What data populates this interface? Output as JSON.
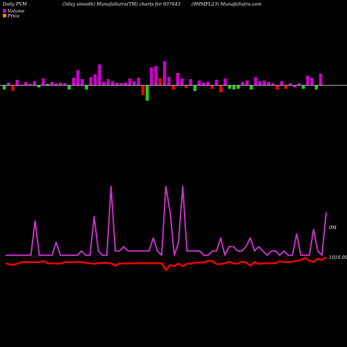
{
  "header": {
    "left": "Daily PVM",
    "center": "(5day smooth) MunafaSutra(TM) charts for 937643",
    "right": "(9MMFL23) MunafaSutra.com"
  },
  "legend": [
    {
      "label": "Volume",
      "color": "#cc00cc"
    },
    {
      "label": "Price",
      "color": "#ff8800"
    }
  ],
  "colors": {
    "background": "#000000",
    "volume_line": "#cc33cc",
    "price_line": "#ff0000",
    "bar_up": "#cc00cc",
    "bar_down": "#ff0000",
    "bar_green": "#22cc22",
    "baseline": "#ffffff"
  },
  "labels": {
    "volume_axis": "0M",
    "price_axis": "1010.00"
  },
  "chart_data": {
    "type": "line",
    "bars": {
      "values": [
        -6,
        4,
        -8,
        8,
        1,
        5,
        2,
        6,
        -3,
        10,
        2,
        5,
        3,
        4,
        3,
        -6,
        11,
        22,
        9,
        -6,
        12,
        16,
        30,
        5,
        9,
        6,
        4,
        3,
        4,
        10,
        6,
        11,
        -14,
        -22,
        26,
        28,
        10,
        35,
        12,
        -6,
        18,
        10,
        -4,
        9,
        -8,
        7,
        4,
        5,
        -5,
        8,
        -10,
        10,
        -5,
        -6,
        -5,
        5,
        7,
        -6,
        12,
        6,
        7,
        5,
        3,
        -6,
        6,
        -5,
        3,
        -3,
        3,
        -5,
        14,
        11,
        -6,
        17
      ],
      "colors": [
        "g",
        "m",
        "r",
        "m",
        "m",
        "m",
        "m",
        "m",
        "g",
        "m",
        "g",
        "m",
        "m",
        "m",
        "m",
        "g",
        "m",
        "m",
        "m",
        "g",
        "m",
        "m",
        "m",
        "m",
        "m",
        "m",
        "m",
        "m",
        "m",
        "m",
        "m",
        "m",
        "r",
        "g",
        "m",
        "m",
        "r",
        "m",
        "m",
        "r",
        "m",
        "m",
        "r",
        "m",
        "g",
        "m",
        "m",
        "m",
        "r",
        "m",
        "r",
        "m",
        "g",
        "g",
        "g",
        "m",
        "m",
        "g",
        "m",
        "m",
        "m",
        "m",
        "m",
        "r",
        "m",
        "r",
        "m",
        "m",
        "m",
        "g",
        "m",
        "m",
        "g",
        "m"
      ]
    },
    "volume": [
      1,
      1,
      1,
      1,
      1,
      1,
      1,
      9,
      1,
      1,
      1,
      1,
      4,
      1,
      1,
      1,
      1,
      1,
      2,
      1,
      1,
      10,
      2,
      1,
      1,
      17,
      2,
      2,
      3,
      2,
      2,
      2,
      2,
      2,
      2,
      5,
      2,
      1,
      17,
      11,
      1,
      4,
      17,
      2,
      2,
      2,
      2,
      1,
      1,
      2,
      2,
      5,
      1,
      3,
      3,
      2,
      2,
      3,
      5,
      2,
      3,
      2,
      1,
      2,
      2,
      1,
      2,
      1,
      1,
      6,
      1,
      1,
      1,
      7,
      2,
      1,
      11
    ],
    "price": [
      0.6,
      0.1,
      0.1,
      0.6,
      0.9,
      0.9,
      0.9,
      0.9,
      0.9,
      1.2,
      0.5,
      0.5,
      0.5,
      0.5,
      0.9,
      0.9,
      0.9,
      1.0,
      1.0,
      0.7,
      0.6,
      0.4,
      0.6,
      0.6,
      0.6,
      0.6,
      0.6,
      0.6,
      0.6,
      0.6,
      0.6,
      0.6,
      0.6,
      0.6,
      0.6,
      0.6,
      0.6,
      0.6,
      0.6,
      0.6,
      0.6,
      0.6,
      0.6,
      0.6,
      0.6,
      0.6,
      0.6,
      0.6,
      0.6,
      0.6,
      0.6,
      0.6,
      0.6,
      0.6,
      0.6,
      0.6,
      0.6,
      0.6,
      0.6,
      0.6,
      0.6,
      0.6,
      0.6,
      0.6,
      0.6,
      0.6,
      0.6,
      0.6,
      0.6,
      0.6,
      0.6,
      0.6,
      0.6,
      0.6,
      0.6,
      0.6,
      0.6
    ],
    "price_shape": [
      0.6,
      0.15,
      0.1,
      0.6,
      0.95,
      0.95,
      0.95,
      0.95,
      0.95,
      1.3,
      0.55,
      0.55,
      0.5,
      0.5,
      0.95,
      0.9,
      0.9,
      1.05,
      1.0,
      0.7,
      0.6,
      0.4,
      0.65,
      0.7,
      0.7,
      0.55,
      -0.2,
      0.55,
      0.5,
      0.55,
      0.55,
      0.6,
      0.6,
      0.6,
      0.6,
      0.6,
      0.6,
      0.6,
      -1.6,
      0.0,
      -0.3,
      0.5,
      -0.4,
      0.5,
      0.4,
      0.8,
      0.85,
      0.8,
      1.4,
      1.3,
      0.3,
      0.35,
      0.6,
      1.1,
      0.5,
      0.5,
      1.1,
      0.8,
      -0.2,
      1.0,
      0.4,
      0.5,
      0.6,
      0.6,
      0.6,
      1.3,
      0.9,
      1.0,
      1.1,
      1.3,
      1.7,
      2.3,
      1.4,
      1.0,
      2.1,
      1.6,
      2.6
    ],
    "title": "",
    "xlabel": "",
    "ylabel": "",
    "grid": false,
    "legend_position": "top-left"
  }
}
